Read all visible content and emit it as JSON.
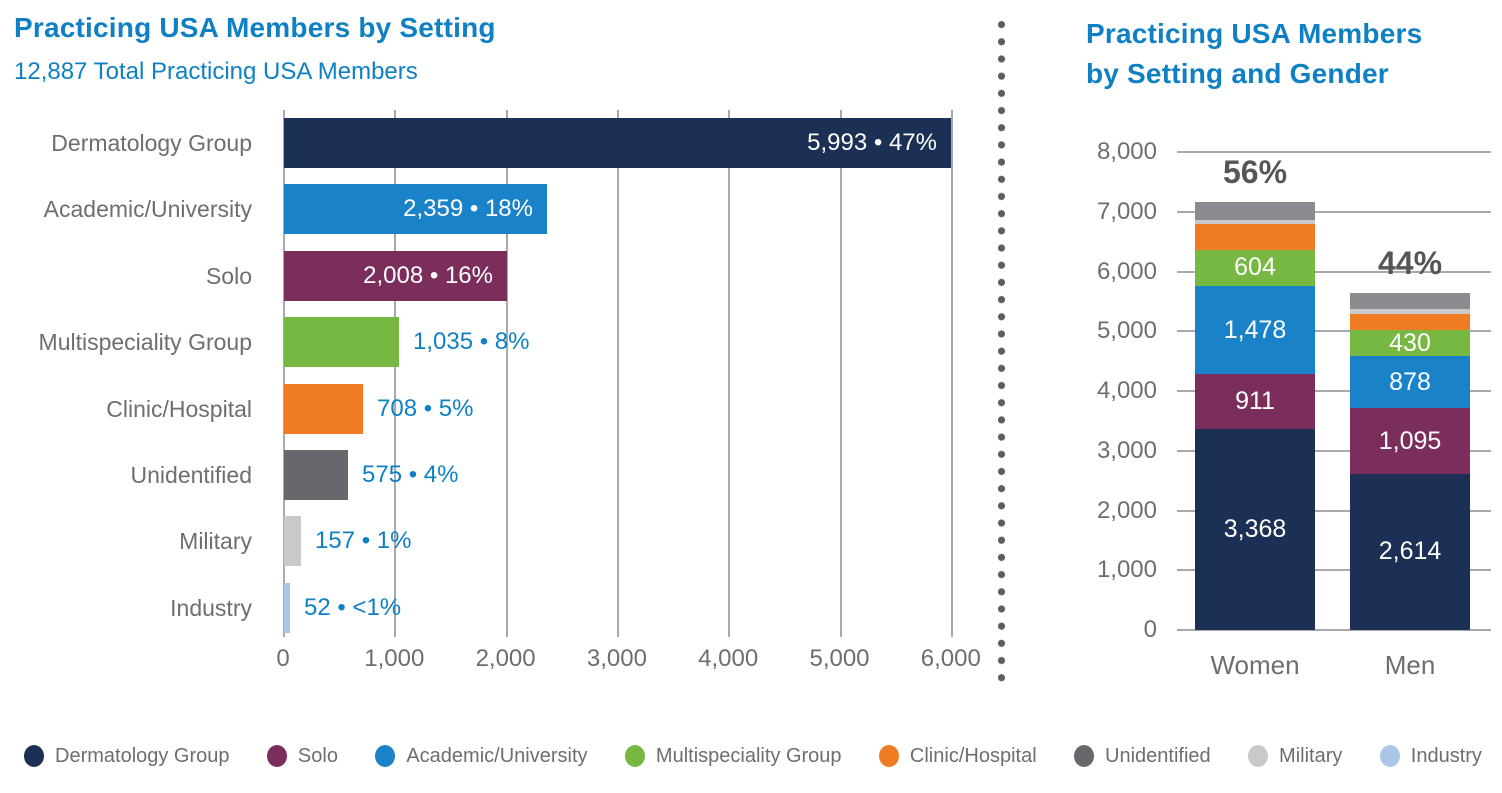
{
  "colors": {
    "navy": "#1C2F55",
    "blue": "#1982C8",
    "purple": "#7B2E5C",
    "green": "#77B843",
    "orange": "#EF7B23",
    "gray_dark": "#66686B",
    "gray_stack": "#8A8C8F",
    "gray_light": "#C8C9CA",
    "light_blue": "#ABC7E8",
    "title_blue": "#0F80C4",
    "value_blue": "#0F80C4",
    "axis_text": "#6D6E71",
    "percent_text": "#55565A",
    "gridline": "#A7A9AC",
    "divider_dot": "#5A5F64",
    "bar_label_white": "#FFFFFF"
  },
  "left_chart": {
    "title": "Practicing USA Members by Setting",
    "subtitle": "12,887 Total Practicing USA Members"
  },
  "right_chart": {
    "title": "Practicing USA Members\nby Setting and Gender"
  },
  "chart_data": [
    {
      "type": "bar",
      "orientation": "horizontal",
      "title": "Practicing USA Members by Setting",
      "subtitle": "12,887 Total Practicing USA Members",
      "total_members": 12887,
      "categories": [
        "Dermatology Group",
        "Academic/University",
        "Solo",
        "Multispeciality Group",
        "Clinic/Hospital",
        "Unidentified",
        "Military",
        "Industry"
      ],
      "values": [
        5993,
        2359,
        2008,
        1035,
        708,
        575,
        157,
        52
      ],
      "percents": [
        "47%",
        "18%",
        "16%",
        "8%",
        "5%",
        "4%",
        "1%",
        "<1%"
      ],
      "labels": [
        "5,993 • 47%",
        "2,359 • 18%",
        "2,008 • 16%",
        "1,035 • 8%",
        "708 • 5%",
        "575 • 4%",
        "157 • 1%",
        "52 • <1%"
      ],
      "label_inside": [
        true,
        true,
        true,
        false,
        false,
        false,
        false,
        false
      ],
      "color_keys": [
        "navy",
        "blue",
        "purple",
        "green",
        "orange",
        "gray_dark",
        "gray_light",
        "light_blue"
      ],
      "x_ticks": [
        "0",
        "1,000",
        "2,000",
        "3,000",
        "4,000",
        "5,000",
        "6,000"
      ],
      "xlim": [
        0,
        6000
      ],
      "grid": "vertical"
    },
    {
      "type": "stacked-bar",
      "orientation": "vertical",
      "title": "Practicing USA Members by Setting and Gender",
      "categories": [
        "Women",
        "Men"
      ],
      "category_percent_labels": [
        "56%",
        "44%"
      ],
      "y_ticks": [
        "8,000",
        "7,000",
        "6,000",
        "5,000",
        "4,000",
        "3,000",
        "2,000",
        "1,000",
        "0"
      ],
      "ylim": [
        0,
        8000
      ],
      "grid": "horizontal",
      "series": [
        {
          "name": "Dermatology Group",
          "color_key": "navy",
          "values": [
            3368,
            2614
          ],
          "labels": [
            "3,368",
            "2,614"
          ]
        },
        {
          "name": "Solo",
          "color_key": "purple",
          "values": [
            911,
            1095
          ],
          "labels": [
            "911",
            "1,095"
          ]
        },
        {
          "name": "Academic/University",
          "color_key": "blue",
          "values": [
            1478,
            878
          ],
          "labels": [
            "1,478",
            "878"
          ]
        },
        {
          "name": "Multispeciality Group",
          "color_key": "green",
          "values": [
            604,
            430
          ],
          "labels": [
            "604",
            "430"
          ]
        },
        {
          "name": "Clinic/Hospital",
          "color_key": "orange",
          "values": [
            430,
            270
          ],
          "labels": [
            "",
            ""
          ]
        },
        {
          "name": "Military",
          "color_key": "gray_light",
          "values": [
            75,
            80
          ],
          "labels": [
            "",
            ""
          ]
        },
        {
          "name": "Unidentified",
          "color_key": "gray_stack",
          "values": [
            300,
            270
          ],
          "labels": [
            "",
            ""
          ]
        }
      ]
    }
  ],
  "legend": {
    "items": [
      {
        "label": "Dermatology Group",
        "color_key": "navy"
      },
      {
        "label": "Solo",
        "color_key": "purple"
      },
      {
        "label": "Academic/University",
        "color_key": "blue"
      },
      {
        "label": "Multispeciality Group",
        "color_key": "green"
      },
      {
        "label": "Clinic/Hospital",
        "color_key": "orange"
      },
      {
        "label": "Unidentified",
        "color_key": "gray_dark"
      },
      {
        "label": "Military",
        "color_key": "gray_light"
      },
      {
        "label": "Industry",
        "color_key": "light_blue"
      }
    ]
  }
}
